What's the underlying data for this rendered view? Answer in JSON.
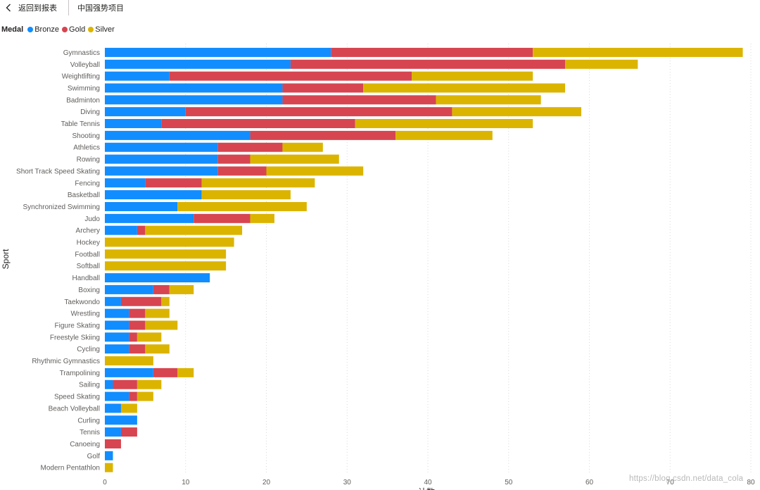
{
  "header": {
    "back_label": "返回到报表",
    "page_name": "中国强势项目"
  },
  "legend": {
    "title": "Medal",
    "items": [
      {
        "name": "Bronze",
        "color": "#118dff"
      },
      {
        "name": "Gold",
        "color": "#d64550"
      },
      {
        "name": "Silver",
        "color": "#dbb400"
      }
    ]
  },
  "watermark": "https://blog.csdn.net/data_cola",
  "chart_data": {
    "type": "bar",
    "orientation": "horizontal",
    "stacked": true,
    "ylabel": "Sport",
    "xlabel": "计数",
    "xlim": [
      0,
      80
    ],
    "xticks": [
      0,
      10,
      20,
      30,
      40,
      50,
      60,
      70,
      80
    ],
    "grid": "vertical-dotted",
    "categories": [
      "Gymnastics",
      "Volleyball",
      "Weightlifting",
      "Swimming",
      "Badminton",
      "Diving",
      "Table Tennis",
      "Shooting",
      "Athletics",
      "Rowing",
      "Short Track Speed Skating",
      "Fencing",
      "Basketball",
      "Synchronized Swimming",
      "Judo",
      "Archery",
      "Hockey",
      "Football",
      "Softball",
      "Handball",
      "Boxing",
      "Taekwondo",
      "Wrestling",
      "Figure Skating",
      "Freestyle Skiing",
      "Cycling",
      "Rhythmic Gymnastics",
      "Trampolining",
      "Sailing",
      "Speed Skating",
      "Beach Volleyball",
      "Curling",
      "Tennis",
      "Canoeing",
      "Golf",
      "Modern Pentathlon"
    ],
    "series": [
      {
        "name": "Bronze",
        "color": "#118dff",
        "values": [
          28,
          23,
          8,
          22,
          22,
          10,
          7,
          18,
          14,
          14,
          14,
          5,
          12,
          9,
          11,
          4,
          0,
          0,
          0,
          13,
          6,
          2,
          3,
          3,
          3,
          3,
          0,
          6,
          1,
          3,
          2,
          4,
          2,
          0,
          1,
          0
        ]
      },
      {
        "name": "Gold",
        "color": "#d64550",
        "values": [
          25,
          34,
          30,
          10,
          19,
          33,
          24,
          18,
          8,
          4,
          6,
          7,
          0,
          0,
          7,
          1,
          0,
          0,
          0,
          0,
          2,
          5,
          2,
          2,
          1,
          2,
          0,
          3,
          3,
          1,
          0,
          0,
          2,
          2,
          0,
          0
        ]
      },
      {
        "name": "Silver",
        "color": "#dbb400",
        "values": [
          26,
          9,
          15,
          25,
          13,
          16,
          22,
          12,
          5,
          11,
          12,
          14,
          11,
          16,
          3,
          12,
          16,
          15,
          15,
          0,
          3,
          1,
          3,
          4,
          3,
          3,
          6,
          2,
          3,
          2,
          2,
          0,
          0,
          0,
          0,
          1
        ]
      }
    ]
  }
}
